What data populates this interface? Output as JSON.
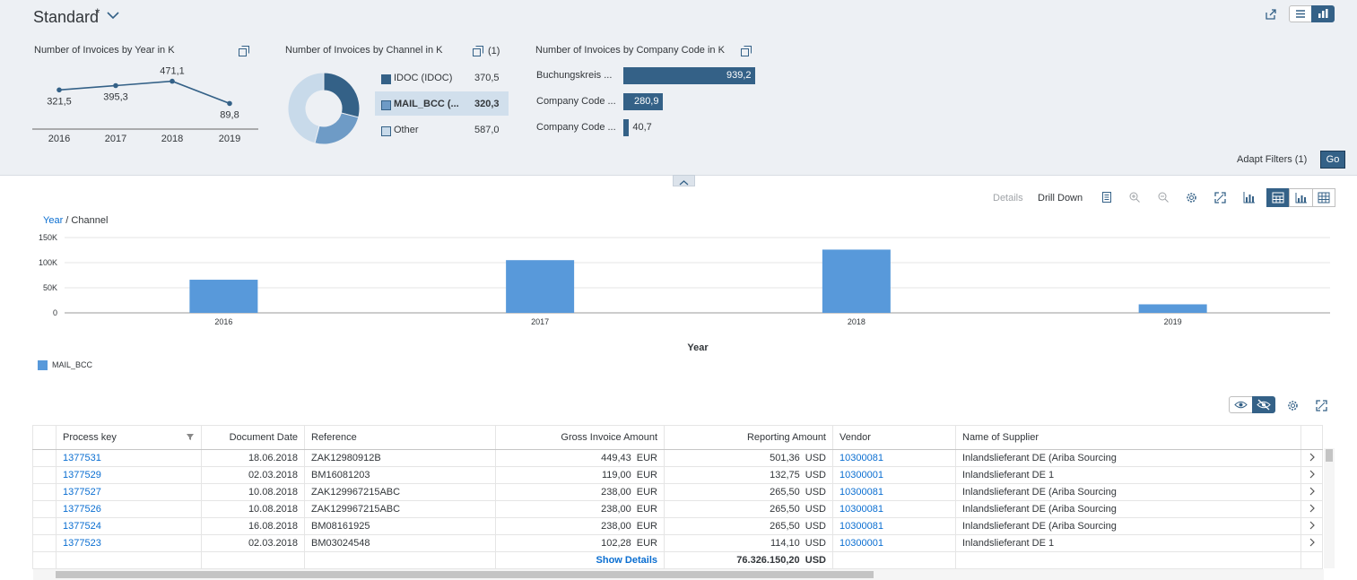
{
  "header": {
    "variant_title": "Standard",
    "dirty_marker": "*"
  },
  "cards": {
    "year": {
      "title": "Number of Invoices by Year in K",
      "chart_data": {
        "type": "line",
        "x": [
          "2016",
          "2017",
          "2018",
          "2019"
        ],
        "values": [
          321.5,
          395.3,
          471.1,
          89.8
        ],
        "value_labels": [
          "321,5",
          "395,3",
          "471,1",
          "89,8"
        ]
      }
    },
    "channel": {
      "title": "Number of Invoices by Channel in K",
      "selection_count": "(1)",
      "items": [
        {
          "label": "IDOC (IDOC)",
          "value": "370,5",
          "color": "#346187"
        },
        {
          "label": "MAIL_BCC (...",
          "value": "320,3",
          "color": "#6e9bc6"
        },
        {
          "label": "Other",
          "value": "587,0",
          "color": "#c8daea"
        }
      ],
      "chart_data": {
        "type": "pie",
        "categories": [
          "IDOC (IDOC)",
          "MAIL_BCC (...",
          "Other"
        ],
        "values": [
          370.5,
          320.3,
          587.0
        ]
      }
    },
    "company": {
      "title": "Number of Invoices by Company Code in K",
      "items": [
        {
          "label": "Buchungskreis ...",
          "value": "939,2"
        },
        {
          "label": "Company Code ...",
          "value": "280,9"
        },
        {
          "label": "Company Code ...",
          "value": "40,7"
        }
      ],
      "chart_data": {
        "type": "bar",
        "categories": [
          "Buchungskreis ...",
          "Company Code ...",
          "Company Code ..."
        ],
        "values": [
          939.2,
          280.9,
          40.7
        ]
      }
    }
  },
  "filterbar": {
    "adapt_filters": "Adapt Filters (1)",
    "go": "Go"
  },
  "chart_toolbar": {
    "details": "Details",
    "drill_down": "Drill Down"
  },
  "main_chart": {
    "breadcrumb_year": "Year",
    "breadcrumb_sep": " / ",
    "breadcrumb_channel": "Channel",
    "legend": "MAIL_BCC",
    "chart_data": {
      "type": "bar",
      "categories": [
        "2016",
        "2017",
        "2018",
        "2019"
      ],
      "series": [
        {
          "name": "MAIL_BCC",
          "values": [
            66000,
            105000,
            126000,
            17000
          ]
        }
      ],
      "xlabel": "Year",
      "ylabel": "",
      "ylim": [
        0,
        150000
      ],
      "y_ticks": [
        "0",
        "50K",
        "100K",
        "150K"
      ],
      "grid": true,
      "legend_position": "bottom-left"
    }
  },
  "table": {
    "columns": [
      "Process key",
      "Document Date",
      "Reference",
      "Gross Invoice Amount",
      "Reporting Amount",
      "Vendor",
      "Name of Supplier"
    ],
    "rows": [
      {
        "key": "1377531",
        "date": "18.06.2018",
        "ref": "ZAK12980912B",
        "gross": "449,43",
        "gcur": "EUR",
        "rep": "501,36",
        "rcur": "USD",
        "vendor": "10300081",
        "supplier": "Inlandslieferant DE (Ariba Sourcing"
      },
      {
        "key": "1377529",
        "date": "02.03.2018",
        "ref": "BM16081203",
        "gross": "119,00",
        "gcur": "EUR",
        "rep": "132,75",
        "rcur": "USD",
        "vendor": "10300001",
        "supplier": "Inlandslieferant DE 1"
      },
      {
        "key": "1377527",
        "date": "10.08.2018",
        "ref": "ZAK129967215ABC",
        "gross": "238,00",
        "gcur": "EUR",
        "rep": "265,50",
        "rcur": "USD",
        "vendor": "10300081",
        "supplier": "Inlandslieferant DE (Ariba Sourcing"
      },
      {
        "key": "1377526",
        "date": "10.08.2018",
        "ref": "ZAK129967215ABC",
        "gross": "238,00",
        "gcur": "EUR",
        "rep": "265,50",
        "rcur": "USD",
        "vendor": "10300081",
        "supplier": "Inlandslieferant DE (Ariba Sourcing"
      },
      {
        "key": "1377524",
        "date": "16.08.2018",
        "ref": "BM08161925",
        "gross": "238,00",
        "gcur": "EUR",
        "rep": "265,50",
        "rcur": "USD",
        "vendor": "10300081",
        "supplier": "Inlandslieferant DE (Ariba Sourcing"
      },
      {
        "key": "1377523",
        "date": "02.03.2018",
        "ref": "BM03024548",
        "gross": "102,28",
        "gcur": "EUR",
        "rep": "114,10",
        "rcur": "USD",
        "vendor": "10300001",
        "supplier": "Inlandslieferant DE 1"
      }
    ],
    "footer": {
      "show_details": "Show Details",
      "total": "76.326.150,20",
      "total_cur": "USD"
    }
  },
  "colors": {
    "accent": "#0a6ed1",
    "bar": "#5899da",
    "dark_bar": "#346187"
  }
}
